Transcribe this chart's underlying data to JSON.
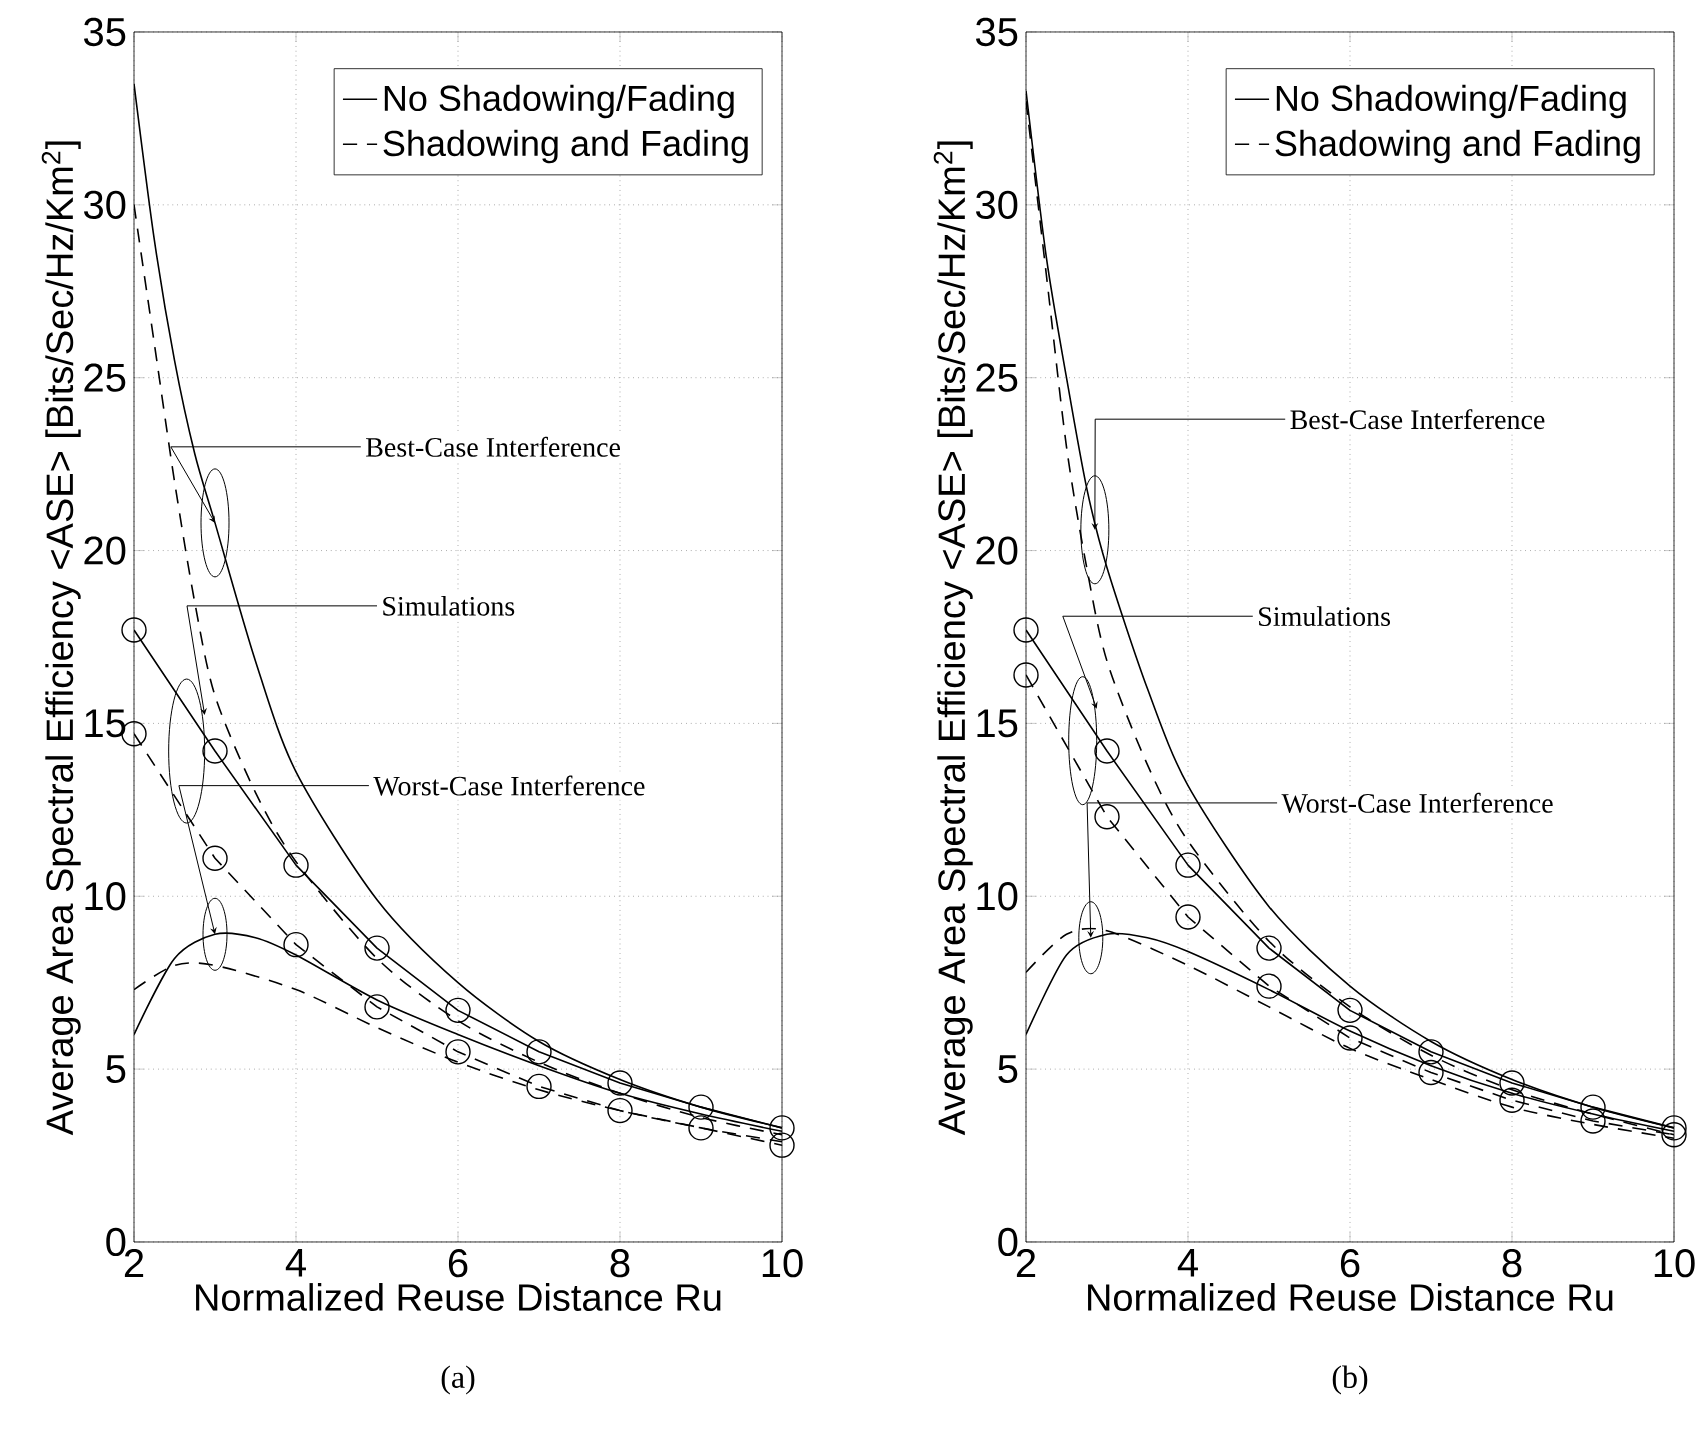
{
  "chart_data": [
    {
      "type": "line",
      "title": "(a)",
      "xlabel": "Normalized Reuse Distance Ru",
      "ylabel": "Average Area Spectral Efficiency <ASE> [Bits/Sec/Hz/Km$^{2}$]",
      "xlim": [
        2,
        10
      ],
      "ylim": [
        0,
        35
      ],
      "xticks": [
        2,
        4,
        6,
        8,
        10
      ],
      "yticks": [
        0,
        5,
        10,
        15,
        20,
        25,
        30,
        35
      ],
      "grid": true,
      "legend": "top right",
      "series": [
        {
          "name": "No Shadowing/Fading",
          "color": "#000000",
          "line_style": "solid",
          "marker": "none",
          "x": [
            2,
            2.25,
            2.5,
            2.75,
            3,
            3.5,
            4,
            5,
            6,
            7,
            8,
            9,
            10
          ],
          "values": [
            33.5,
            29,
            25.5,
            22.8,
            20.8,
            16.8,
            13.6,
            9.9,
            7.5,
            5.8,
            4.7,
            3.9,
            3.3
          ]
        },
        {
          "name": "Shadowing and Fading",
          "color": "#000000",
          "line_style": "dashed",
          "marker": "none",
          "x": [
            2,
            2.25,
            2.5,
            2.75,
            3,
            3.5,
            4,
            5,
            6,
            7,
            8,
            9,
            10
          ],
          "values": [
            30,
            26,
            22,
            18.5,
            15.8,
            13,
            11,
            8.2,
            6.4,
            5.2,
            4.3,
            3.6,
            3.1
          ]
        },
        {
          "color": "#000000",
          "line_style": "solid",
          "marker": "circle",
          "x": [
            2,
            3,
            4,
            5,
            6,
            7,
            8,
            9,
            10
          ],
          "values": [
            17.7,
            14.2,
            10.9,
            8.5,
            6.7,
            5.5,
            4.6,
            3.9,
            3.3
          ]
        },
        {
          "color": "#000000",
          "line_style": "dashed",
          "marker": "circle",
          "x": [
            2,
            3,
            4,
            5,
            6,
            7,
            8,
            9,
            10
          ],
          "values": [
            14.7,
            11.1,
            8.6,
            6.8,
            5.5,
            4.5,
            3.8,
            3.3,
            2.8
          ]
        },
        {
          "color": "#000000",
          "line_style": "solid",
          "marker": "none",
          "x": [
            2,
            2.5,
            3,
            3.5,
            4,
            5,
            6,
            7,
            8,
            9,
            10
          ],
          "values": [
            6.0,
            8.2,
            8.9,
            8.8,
            8.3,
            7.0,
            6.0,
            5.1,
            4.3,
            3.7,
            3.2
          ]
        },
        {
          "color": "#000000",
          "line_style": "dashed",
          "marker": "none",
          "x": [
            2,
            2.5,
            3,
            4,
            5,
            6,
            7,
            8,
            9,
            10
          ],
          "values": [
            7.3,
            8.0,
            8.0,
            7.3,
            6.2,
            5.2,
            4.4,
            3.8,
            3.3,
            2.9
          ]
        }
      ],
      "annotations": [
        {
          "text": "Best-Case Interference",
          "x": 3,
          "y": 20.8
        },
        "Simulations",
        {
          "text": "Worst-Case Interference",
          "x": 3,
          "y": 8.9
        }
      ]
    },
    {
      "type": "line",
      "title": "(b)",
      "xlabel": "Normalized Reuse Distance Ru",
      "ylabel": "Average Area Spectral Efficiency <ASE> [Bits/Sec/Hz/Km$^{2}$]",
      "xlim": [
        2,
        10
      ],
      "ylim": [
        0,
        35
      ],
      "xticks": [
        2,
        4,
        6,
        8,
        10
      ],
      "yticks": [
        0,
        5,
        10,
        15,
        20,
        25,
        30,
        35
      ],
      "grid": true,
      "legend": "top right",
      "series": [
        {
          "name": "No Shadowing/Fading",
          "color": "#000000",
          "line_style": "solid",
          "marker": "none",
          "x": [
            2,
            2.25,
            2.5,
            2.75,
            3,
            3.5,
            4,
            5,
            6,
            7,
            8,
            9,
            10
          ],
          "values": [
            33.3,
            28.5,
            25,
            21.8,
            19.5,
            16,
            13.2,
            9.7,
            7.4,
            5.8,
            4.7,
            3.9,
            3.3
          ]
        },
        {
          "name": "Shadowing and Fading",
          "color": "#000000",
          "line_style": "dashed",
          "marker": "none",
          "x": [
            2,
            2.25,
            2.5,
            2.75,
            3,
            3.5,
            4,
            5,
            6,
            7,
            8,
            9,
            10
          ],
          "values": [
            33,
            28,
            23,
            19.5,
            16.8,
            13.8,
            11.6,
            8.7,
            6.8,
            5.4,
            4.4,
            3.7,
            3.1
          ]
        },
        {
          "color": "#000000",
          "line_style": "solid",
          "marker": "circle",
          "x": [
            2,
            3,
            4,
            5,
            6,
            7,
            8,
            9,
            10
          ],
          "values": [
            17.7,
            14.2,
            10.9,
            8.5,
            6.7,
            5.5,
            4.6,
            3.9,
            3.3
          ]
        },
        {
          "color": "#000000",
          "line_style": "dashed",
          "marker": "circle",
          "x": [
            2,
            3,
            4,
            5,
            6,
            7,
            8,
            9,
            10
          ],
          "values": [
            16.4,
            12.3,
            9.4,
            7.4,
            5.9,
            4.9,
            4.1,
            3.5,
            3.1
          ]
        },
        {
          "color": "#000000",
          "line_style": "solid",
          "marker": "none",
          "x": [
            2,
            2.5,
            3,
            3.5,
            4,
            5,
            6,
            7,
            8,
            9,
            10
          ],
          "values": [
            6.0,
            8.3,
            8.9,
            8.8,
            8.4,
            7.3,
            6.1,
            5.1,
            4.3,
            3.7,
            3.2
          ]
        },
        {
          "color": "#000000",
          "line_style": "dashed",
          "marker": "none",
          "x": [
            2,
            2.5,
            3,
            4,
            5,
            6,
            7,
            8,
            9,
            10
          ],
          "values": [
            7.8,
            8.9,
            9.0,
            8.0,
            6.8,
            5.6,
            4.7,
            3.9,
            3.4,
            3.0
          ]
        }
      ],
      "annotations": [
        {
          "text": "Best-Case Interference",
          "x": 2.85,
          "y": 20.6
        },
        "Simulations",
        {
          "text": "Worst-Case Interference",
          "x": 2.8,
          "y": 8.8
        }
      ]
    }
  ]
}
